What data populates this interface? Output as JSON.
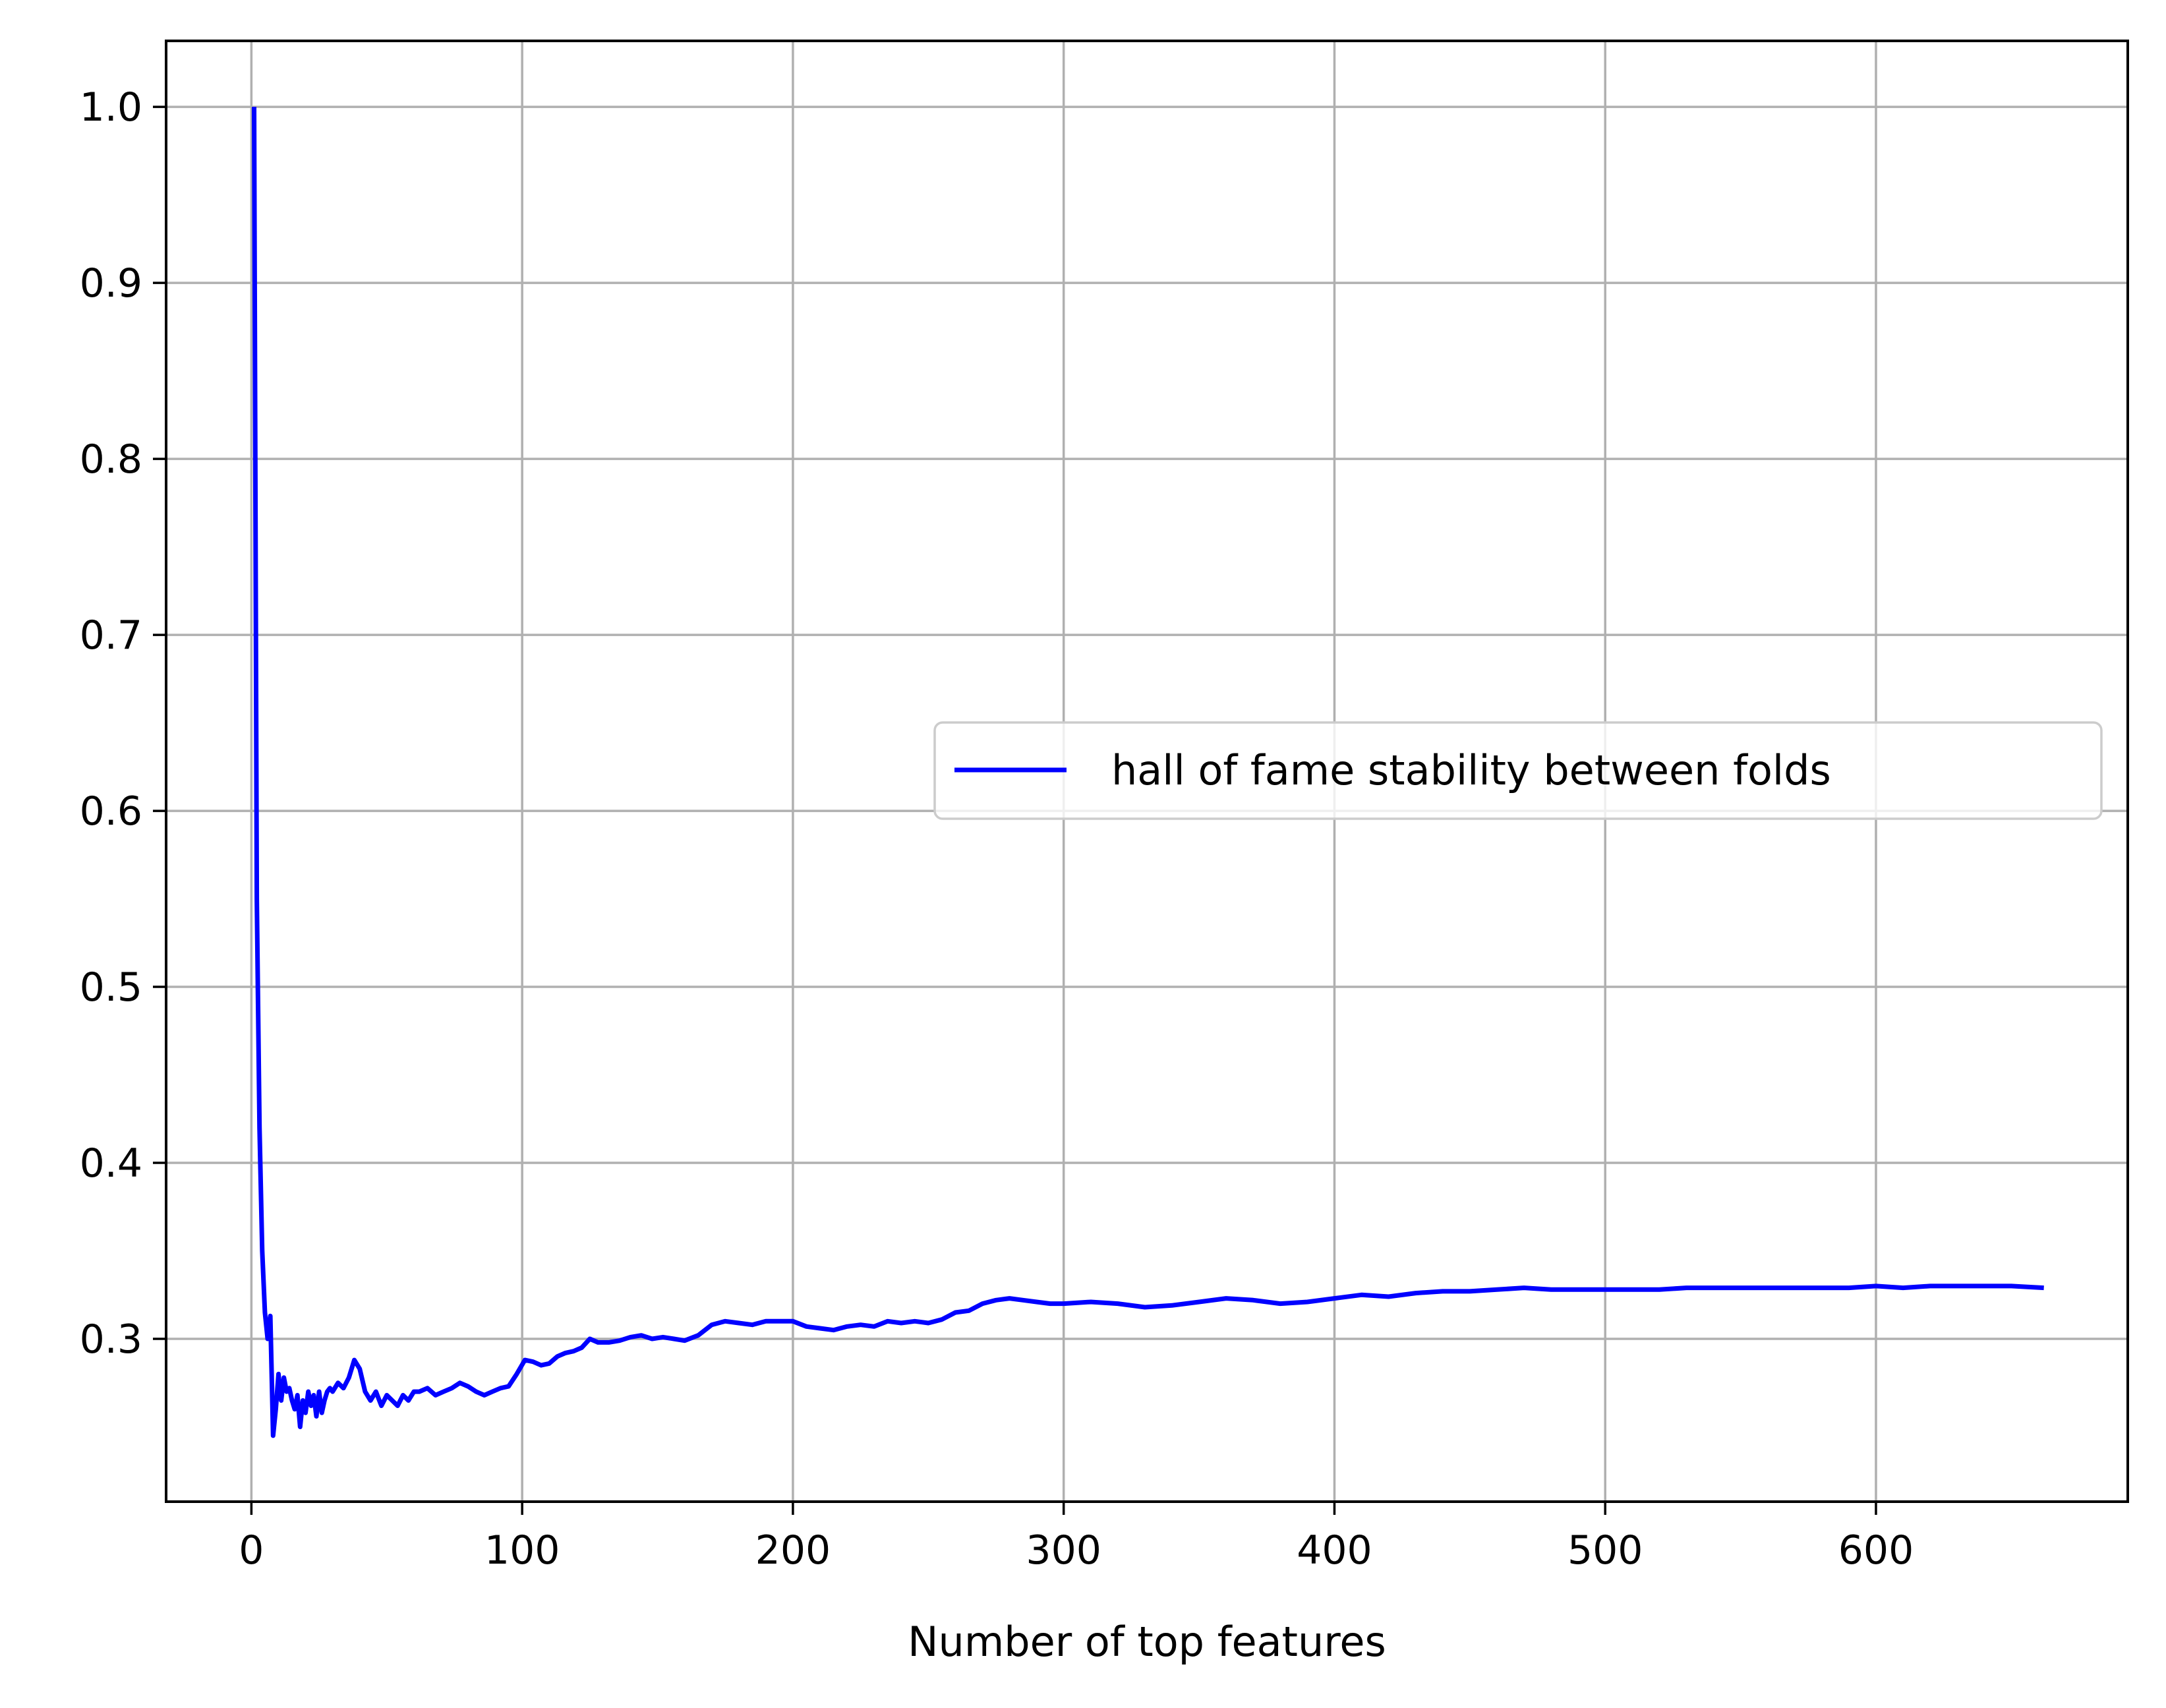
{
  "chart_data": {
    "type": "line",
    "title": "",
    "xlabel": "Number of top features",
    "ylabel": "",
    "xlim": [
      -31.5,
      693
    ],
    "ylim": [
      0.2075,
      1.0375
    ],
    "grid": true,
    "legend_position": "center-right",
    "x_ticks": [
      0,
      100,
      200,
      300,
      400,
      500,
      600
    ],
    "x_tick_labels": [
      "0",
      "100",
      "200",
      "300",
      "400",
      "500",
      "600"
    ],
    "y_ticks": [
      0.3,
      0.4,
      0.5,
      0.6,
      0.7,
      0.8,
      0.9,
      1.0
    ],
    "y_tick_labels": [
      "0.3",
      "0.4",
      "0.5",
      "0.6",
      "0.7",
      "0.8",
      "0.9",
      "1.0"
    ],
    "series": [
      {
        "name": "hall of fame stability between folds",
        "color": "#0000ff",
        "x": [
          1,
          2,
          3,
          4,
          5,
          6,
          7,
          8,
          9,
          10,
          11,
          12,
          13,
          14,
          15,
          16,
          17,
          18,
          19,
          20,
          21,
          22,
          23,
          24,
          25,
          26,
          27,
          28,
          29,
          30,
          32,
          34,
          36,
          38,
          40,
          42,
          44,
          46,
          48,
          50,
          52,
          54,
          56,
          58,
          60,
          62,
          65,
          68,
          71,
          74,
          77,
          80,
          83,
          86,
          89,
          92,
          95,
          98,
          101,
          104,
          107,
          110,
          113,
          116,
          119,
          122,
          125,
          128,
          132,
          136,
          140,
          144,
          148,
          152,
          156,
          160,
          165,
          170,
          175,
          180,
          185,
          190,
          195,
          200,
          205,
          210,
          215,
          220,
          225,
          230,
          235,
          240,
          245,
          250,
          255,
          260,
          265,
          270,
          275,
          280,
          285,
          290,
          295,
          300,
          310,
          320,
          330,
          340,
          350,
          360,
          370,
          380,
          390,
          400,
          410,
          420,
          430,
          440,
          450,
          460,
          470,
          480,
          490,
          500,
          510,
          520,
          530,
          540,
          550,
          560,
          570,
          580,
          590,
          600,
          610,
          620,
          630,
          640,
          650,
          662
        ],
        "values": [
          1.0,
          0.55,
          0.42,
          0.35,
          0.315,
          0.3,
          0.313,
          0.245,
          0.26,
          0.28,
          0.265,
          0.278,
          0.27,
          0.272,
          0.265,
          0.26,
          0.268,
          0.25,
          0.265,
          0.258,
          0.27,
          0.262,
          0.268,
          0.256,
          0.27,
          0.258,
          0.265,
          0.27,
          0.272,
          0.27,
          0.275,
          0.272,
          0.278,
          0.288,
          0.283,
          0.27,
          0.265,
          0.27,
          0.262,
          0.268,
          0.265,
          0.262,
          0.268,
          0.265,
          0.27,
          0.27,
          0.272,
          0.268,
          0.27,
          0.272,
          0.275,
          0.273,
          0.27,
          0.268,
          0.27,
          0.272,
          0.273,
          0.28,
          0.288,
          0.287,
          0.285,
          0.286,
          0.29,
          0.292,
          0.293,
          0.295,
          0.3,
          0.298,
          0.298,
          0.299,
          0.301,
          0.302,
          0.3,
          0.301,
          0.3,
          0.299,
          0.302,
          0.308,
          0.31,
          0.309,
          0.308,
          0.31,
          0.31,
          0.31,
          0.307,
          0.306,
          0.305,
          0.307,
          0.308,
          0.307,
          0.31,
          0.309,
          0.31,
          0.309,
          0.311,
          0.315,
          0.316,
          0.32,
          0.322,
          0.323,
          0.322,
          0.321,
          0.32,
          0.32,
          0.321,
          0.32,
          0.318,
          0.319,
          0.321,
          0.323,
          0.322,
          0.32,
          0.321,
          0.323,
          0.325,
          0.324,
          0.326,
          0.327,
          0.327,
          0.328,
          0.329,
          0.328,
          0.328,
          0.328,
          0.328,
          0.328,
          0.329,
          0.329,
          0.329,
          0.329,
          0.329,
          0.329,
          0.329,
          0.33,
          0.329,
          0.33,
          0.33,
          0.33,
          0.33,
          0.329
        ]
      }
    ]
  }
}
